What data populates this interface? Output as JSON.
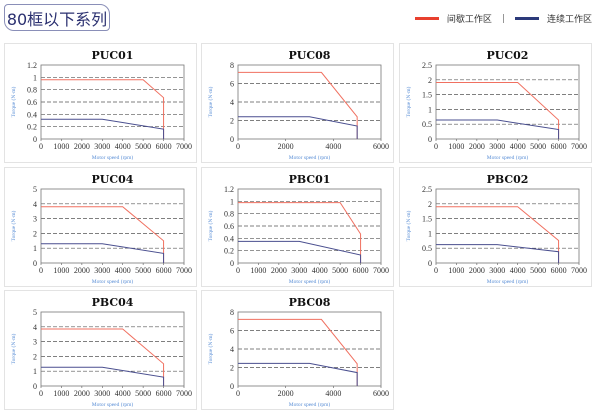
{
  "header": {
    "title": "80框以下系列"
  },
  "legend": {
    "intermittent": {
      "label": "间歇工作区",
      "color": "#e8402e"
    },
    "separator": "|",
    "continuous": {
      "label": "连续工作区",
      "color": "#2c3a7a"
    }
  },
  "chart_data": [
    {
      "type": "line",
      "title": "PUC01",
      "xlabel": "Motor speed (rpm)",
      "ylabel": "Torque (N·m)",
      "xlim": [
        0,
        7000
      ],
      "xstep": 1000,
      "ylim": [
        0,
        1.2
      ],
      "ystep": 0.2,
      "grid": "dashed-horizontal",
      "series": [
        {
          "values": [
            [
              0,
              0.96
            ],
            [
              5000,
              0.96
            ],
            [
              6000,
              0.67
            ],
            [
              6000,
              0
            ]
          ],
          "color": "#f07060"
        },
        {
          "values": [
            [
              0,
              0.32
            ],
            [
              3000,
              0.32
            ],
            [
              6000,
              0.16
            ],
            [
              6000,
              0
            ]
          ],
          "color": "#4a4f8f"
        }
      ]
    },
    {
      "type": "line",
      "title": "PUC08",
      "xlabel": "Motor speed (rpm)",
      "ylabel": "Torque (N·m)",
      "xlim": [
        0,
        6000
      ],
      "xstep": 2000,
      "ylim": [
        0,
        8
      ],
      "ystep": 2,
      "grid": "dashed-horizontal",
      "series": [
        {
          "values": [
            [
              0,
              7.2
            ],
            [
              3500,
              7.2
            ],
            [
              5000,
              2.4
            ],
            [
              5000,
              0
            ]
          ],
          "color": "#f07060"
        },
        {
          "values": [
            [
              0,
              2.4
            ],
            [
              3000,
              2.4
            ],
            [
              5000,
              1.4
            ],
            [
              5000,
              0
            ]
          ],
          "color": "#4a4f8f"
        }
      ]
    },
    {
      "type": "line",
      "title": "PUC02",
      "xlabel": "Motor speed (rpm)",
      "ylabel": "Torque (N·m)",
      "xlim": [
        0,
        7000
      ],
      "xstep": 1000,
      "ylim": [
        0,
        2.5
      ],
      "ystep": 0.5,
      "grid": "dashed-horizontal",
      "series": [
        {
          "values": [
            [
              0,
              1.91
            ],
            [
              4000,
              1.91
            ],
            [
              6000,
              0.64
            ],
            [
              6000,
              0
            ]
          ],
          "color": "#f07060"
        },
        {
          "values": [
            [
              0,
              0.64
            ],
            [
              3000,
              0.64
            ],
            [
              6000,
              0.32
            ],
            [
              6000,
              0
            ]
          ],
          "color": "#4a4f8f"
        }
      ]
    },
    {
      "type": "line",
      "title": "PUC04",
      "xlabel": "Motor speed (rpm)",
      "ylabel": "Torque (N·m)",
      "xlim": [
        0,
        7000
      ],
      "xstep": 1000,
      "ylim": [
        0,
        5
      ],
      "ystep": 1,
      "grid": "dashed-horizontal",
      "series": [
        {
          "values": [
            [
              0,
              3.8
            ],
            [
              4000,
              3.8
            ],
            [
              6000,
              1.5
            ],
            [
              6000,
              0
            ]
          ],
          "color": "#f07060"
        },
        {
          "values": [
            [
              0,
              1.3
            ],
            [
              3000,
              1.3
            ],
            [
              6000,
              0.65
            ],
            [
              6000,
              0
            ]
          ],
          "color": "#4a4f8f"
        }
      ]
    },
    {
      "type": "line",
      "title": "PBC01",
      "xlabel": "Motor speed (rpm)",
      "ylabel": "Torque (N·m)",
      "xlim": [
        0,
        7000
      ],
      "xstep": 1000,
      "ylim": [
        0,
        1.2
      ],
      "ystep": 0.2,
      "grid": "dashed-horizontal",
      "series": [
        {
          "values": [
            [
              0,
              0.98
            ],
            [
              5000,
              0.98
            ],
            [
              6000,
              0.47
            ],
            [
              6000,
              0
            ]
          ],
          "color": "#f07060"
        },
        {
          "values": [
            [
              0,
              0.35
            ],
            [
              3000,
              0.35
            ],
            [
              6000,
              0.13
            ],
            [
              6000,
              0
            ]
          ],
          "color": "#4a4f8f"
        }
      ]
    },
    {
      "type": "line",
      "title": "PBC02",
      "xlabel": "Motor speed (rpm)",
      "ylabel": "Torque (N·m)",
      "xlim": [
        0,
        7000
      ],
      "xstep": 1000,
      "ylim": [
        0,
        2.5
      ],
      "ystep": 0.5,
      "grid": "dashed-horizontal",
      "series": [
        {
          "values": [
            [
              0,
              1.9
            ],
            [
              4000,
              1.9
            ],
            [
              6000,
              0.76
            ],
            [
              6000,
              0
            ]
          ],
          "color": "#f07060"
        },
        {
          "values": [
            [
              0,
              0.62
            ],
            [
              3000,
              0.62
            ],
            [
              6000,
              0.38
            ],
            [
              6000,
              0
            ]
          ],
          "color": "#4a4f8f"
        }
      ]
    },
    {
      "type": "line",
      "title": "PBC04",
      "xlabel": "Motor speed (rpm)",
      "ylabel": "Torque (N·m)",
      "xlim": [
        0,
        7000
      ],
      "xstep": 1000,
      "ylim": [
        0,
        5
      ],
      "ystep": 1,
      "grid": "dashed-horizontal",
      "series": [
        {
          "values": [
            [
              0,
              3.85
            ],
            [
              4000,
              3.85
            ],
            [
              6000,
              1.5
            ],
            [
              6000,
              0
            ]
          ],
          "color": "#f07060"
        },
        {
          "values": [
            [
              0,
              1.27
            ],
            [
              3000,
              1.27
            ],
            [
              6000,
              0.6
            ],
            [
              6000,
              0
            ]
          ],
          "color": "#4a4f8f"
        }
      ]
    },
    {
      "type": "line",
      "title": "PBC08",
      "xlabel": "Motor speed (rpm)",
      "ylabel": "Torque (N·m)",
      "xlim": [
        0,
        6000
      ],
      "xstep": 2000,
      "ylim": [
        0,
        8
      ],
      "ystep": 2,
      "grid": "dashed-horizontal",
      "series": [
        {
          "values": [
            [
              0,
              7.2
            ],
            [
              3500,
              7.2
            ],
            [
              5000,
              2.4
            ],
            [
              5000,
              0
            ]
          ],
          "color": "#f07060"
        },
        {
          "values": [
            [
              0,
              2.45
            ],
            [
              3000,
              2.45
            ],
            [
              5000,
              1.45
            ],
            [
              5000,
              0
            ]
          ],
          "color": "#4a4f8f"
        }
      ]
    }
  ]
}
